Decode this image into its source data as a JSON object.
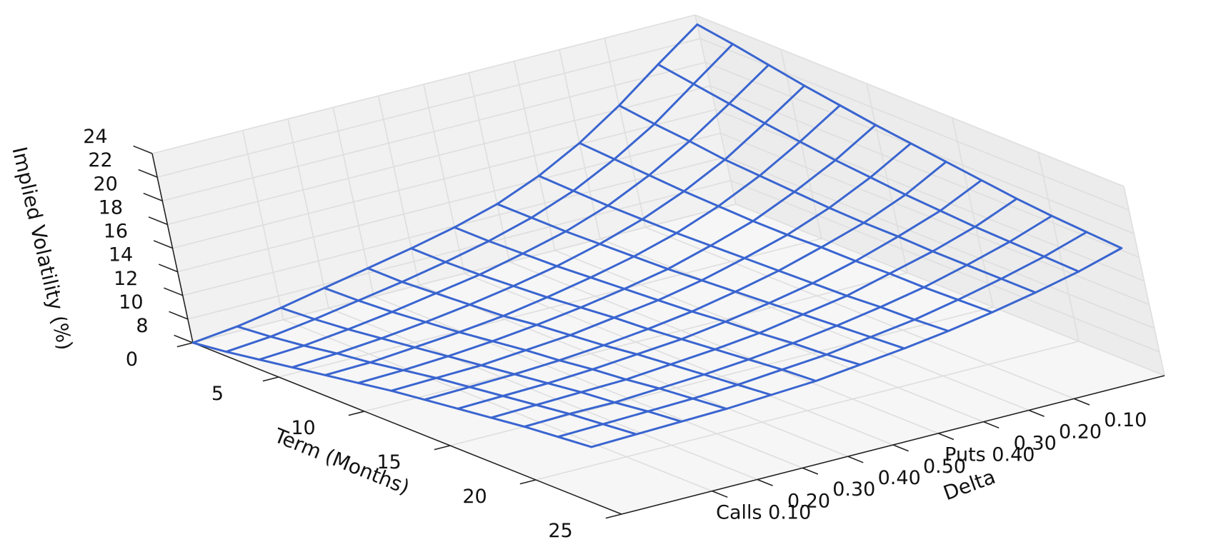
{
  "chart_data": {
    "type": "surface",
    "zlabel": "Implied Volatility (%)",
    "xlabel": "Term (Months)",
    "ylabel": "Delta",
    "xlim": [
      0,
      25
    ],
    "ylim": [
      0,
      12
    ],
    "zlim": [
      8,
      24
    ],
    "x_ticks": [
      0,
      5,
      10,
      15,
      20,
      25
    ],
    "z_ticks": [
      8,
      10,
      12,
      14,
      16,
      18,
      20,
      22,
      24
    ],
    "delta_ticks": [
      "Calls 0.10",
      "0.20",
      "0.30",
      "0.40",
      "0.50",
      "Puts 0.40",
      "0.30",
      "0.20",
      "0.10"
    ],
    "grid": true,
    "wire_color": "#3a65d0",
    "term_months": [
      0,
      2,
      4,
      6,
      8,
      10,
      12,
      14,
      16,
      18,
      20,
      22,
      24
    ],
    "delta_positions": [
      0,
      1,
      2,
      3,
      4,
      5,
      6,
      7,
      8,
      9,
      10,
      11,
      12
    ],
    "surface_rows_by_term": [
      [
        8.0,
        8.4,
        9.0,
        9.7,
        10.4,
        11.1,
        11.9,
        12.9,
        14.3,
        16.1,
        18.3,
        20.8,
        23.2
      ],
      [
        8.4,
        8.7,
        9.2,
        9.8,
        10.4,
        11.1,
        11.9,
        12.9,
        14.2,
        15.9,
        17.9,
        20.3,
        22.7
      ],
      [
        8.9,
        9.1,
        9.5,
        10.0,
        10.6,
        11.2,
        12.0,
        12.9,
        14.1,
        15.7,
        17.6,
        19.8,
        22.1
      ],
      [
        9.4,
        9.6,
        9.9,
        10.3,
        10.8,
        11.4,
        12.1,
        13.0,
        14.1,
        15.5,
        17.2,
        19.3,
        21.5
      ],
      [
        9.9,
        10.0,
        10.3,
        10.6,
        11.0,
        11.6,
        12.3,
        13.1,
        14.1,
        15.4,
        17.0,
        18.9,
        21.0
      ],
      [
        10.4,
        10.5,
        10.7,
        11.0,
        11.4,
        11.9,
        12.5,
        13.2,
        14.2,
        15.3,
        16.8,
        18.5,
        20.5
      ],
      [
        10.9,
        11.0,
        11.1,
        11.4,
        11.7,
        12.2,
        12.7,
        13.4,
        14.3,
        15.3,
        16.6,
        18.2,
        20.1
      ],
      [
        11.3,
        11.4,
        11.5,
        11.7,
        12.0,
        12.4,
        12.9,
        13.6,
        14.4,
        15.4,
        16.5,
        17.9,
        19.7
      ],
      [
        11.7,
        11.8,
        11.9,
        12.1,
        12.4,
        12.7,
        13.2,
        13.8,
        14.5,
        15.4,
        16.5,
        17.7,
        19.3
      ],
      [
        12.1,
        12.2,
        12.3,
        12.4,
        12.7,
        13.0,
        13.4,
        14.0,
        14.6,
        15.5,
        16.4,
        17.5,
        18.9
      ],
      [
        12.5,
        12.6,
        12.6,
        12.8,
        13.0,
        13.3,
        13.7,
        14.2,
        14.8,
        15.5,
        16.4,
        17.4,
        18.6
      ],
      [
        12.8,
        12.9,
        13.0,
        13.1,
        13.3,
        13.6,
        13.9,
        14.4,
        14.9,
        15.6,
        16.4,
        17.3,
        18.4
      ],
      [
        13.1,
        13.2,
        13.3,
        13.4,
        13.6,
        13.8,
        14.2,
        14.6,
        15.1,
        15.7,
        16.4,
        17.2,
        18.2
      ]
    ]
  }
}
